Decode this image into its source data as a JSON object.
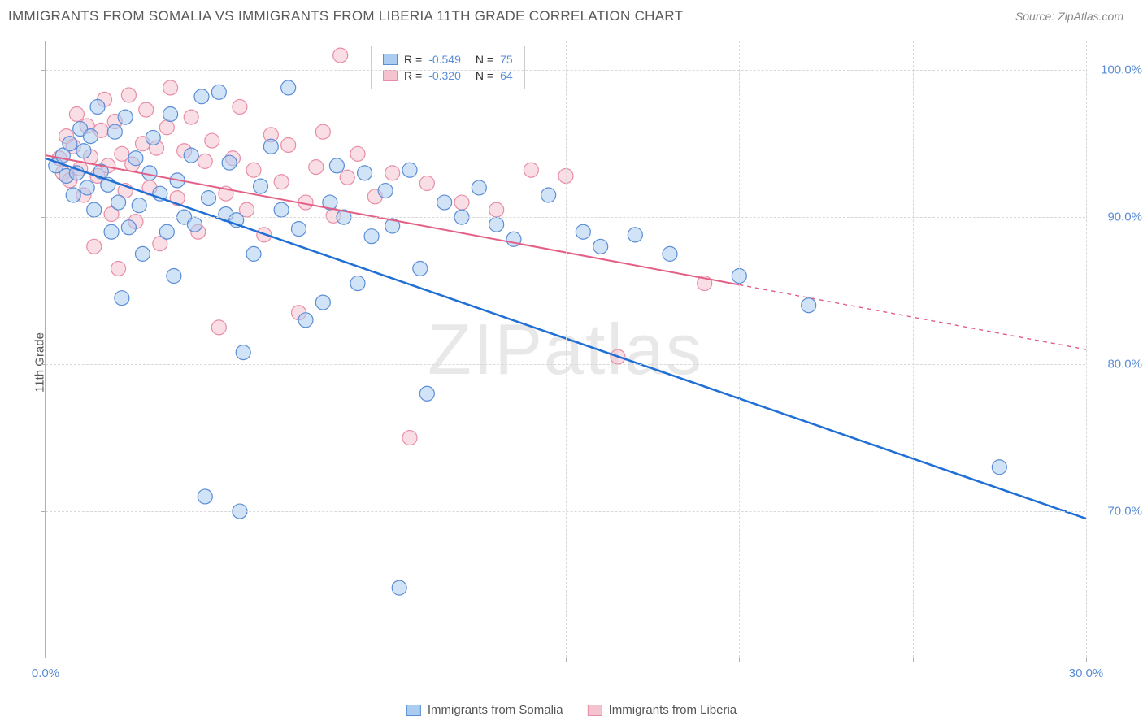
{
  "header": {
    "title": "IMMIGRANTS FROM SOMALIA VS IMMIGRANTS FROM LIBERIA 11TH GRADE CORRELATION CHART",
    "source_prefix": "Source: ",
    "source_name": "ZipAtlas.com"
  },
  "chart": {
    "type": "scatter",
    "ylabel": "11th Grade",
    "watermark": "ZIPatlas",
    "background_color": "#ffffff",
    "grid_color": "#d8d8d8",
    "axis_color": "#b0b0b0",
    "tick_label_color": "#5b8dd6",
    "xlim": [
      0,
      30
    ],
    "ylim": [
      60,
      102
    ],
    "y_ticks": [
      70,
      80,
      90,
      100
    ],
    "y_tick_labels": [
      "70.0%",
      "80.0%",
      "90.0%",
      "100.0%"
    ],
    "x_ticks_major": [
      0,
      5,
      10,
      15,
      20,
      25,
      30
    ],
    "x_tick_labels": {
      "0": "0.0%",
      "30": "30.0%"
    },
    "series": {
      "somalia": {
        "label": "Immigrants from Somalia",
        "color_fill": "#aaccf0",
        "color_stroke": "#5b8dd6",
        "marker_radius": 9,
        "fill_opacity": 0.55,
        "R": "-0.549",
        "N": "75",
        "trend": {
          "x1": 0,
          "y1": 94,
          "x2": 30,
          "y2": 69.5,
          "color": "#1f6fd4",
          "width": 2.5,
          "solid_until_x": 30
        },
        "points": [
          [
            0.3,
            93.5
          ],
          [
            0.5,
            94.2
          ],
          [
            0.6,
            92.8
          ],
          [
            0.7,
            95.0
          ],
          [
            0.8,
            91.5
          ],
          [
            0.9,
            93.0
          ],
          [
            1.0,
            96.0
          ],
          [
            1.1,
            94.5
          ],
          [
            1.2,
            92.0
          ],
          [
            1.3,
            95.5
          ],
          [
            1.4,
            90.5
          ],
          [
            1.5,
            97.5
          ],
          [
            1.6,
            93.1
          ],
          [
            1.8,
            92.2
          ],
          [
            1.9,
            89.0
          ],
          [
            2.0,
            95.8
          ],
          [
            2.1,
            91.0
          ],
          [
            2.2,
            84.5
          ],
          [
            2.3,
            96.8
          ],
          [
            2.4,
            89.3
          ],
          [
            2.6,
            94.0
          ],
          [
            2.7,
            90.8
          ],
          [
            2.8,
            87.5
          ],
          [
            3.0,
            93.0
          ],
          [
            3.1,
            95.4
          ],
          [
            3.3,
            91.6
          ],
          [
            3.5,
            89.0
          ],
          [
            3.6,
            97.0
          ],
          [
            3.7,
            86.0
          ],
          [
            3.8,
            92.5
          ],
          [
            4.0,
            90.0
          ],
          [
            4.2,
            94.2
          ],
          [
            4.3,
            89.5
          ],
          [
            4.5,
            98.2
          ],
          [
            4.6,
            71.0
          ],
          [
            4.7,
            91.3
          ],
          [
            5.0,
            98.5
          ],
          [
            5.2,
            90.2
          ],
          [
            5.3,
            93.7
          ],
          [
            5.5,
            89.8
          ],
          [
            5.6,
            70.0
          ],
          [
            5.7,
            80.8
          ],
          [
            6.0,
            87.5
          ],
          [
            6.2,
            92.1
          ],
          [
            6.5,
            94.8
          ],
          [
            6.8,
            90.5
          ],
          [
            7.0,
            98.8
          ],
          [
            7.3,
            89.2
          ],
          [
            7.5,
            83.0
          ],
          [
            8.0,
            84.2
          ],
          [
            8.2,
            91.0
          ],
          [
            8.4,
            93.5
          ],
          [
            8.6,
            90.0
          ],
          [
            9.0,
            85.5
          ],
          [
            9.2,
            93.0
          ],
          [
            9.4,
            88.7
          ],
          [
            9.8,
            91.8
          ],
          [
            10.0,
            89.4
          ],
          [
            10.2,
            64.8
          ],
          [
            10.5,
            93.2
          ],
          [
            10.8,
            86.5
          ],
          [
            11.0,
            78.0
          ],
          [
            11.5,
            91.0
          ],
          [
            12.0,
            90.0
          ],
          [
            12.5,
            92.0
          ],
          [
            13.0,
            89.5
          ],
          [
            13.5,
            88.5
          ],
          [
            14.5,
            91.5
          ],
          [
            15.5,
            89.0
          ],
          [
            16.0,
            88.0
          ],
          [
            17.0,
            88.8
          ],
          [
            18.0,
            87.5
          ],
          [
            20.0,
            86.0
          ],
          [
            22.0,
            84.0
          ],
          [
            27.5,
            73.0
          ]
        ]
      },
      "liberia": {
        "label": "Immigrants from Liberia",
        "color_fill": "#f5c2d0",
        "color_stroke": "#e88da5",
        "marker_radius": 9,
        "fill_opacity": 0.55,
        "R": "-0.320",
        "N": "64",
        "trend": {
          "x1": 0,
          "y1": 94.2,
          "x2": 30,
          "y2": 81,
          "color": "#e35d84",
          "width": 2,
          "solid_until_x": 20
        },
        "points": [
          [
            0.4,
            94.0
          ],
          [
            0.5,
            93.0
          ],
          [
            0.6,
            95.5
          ],
          [
            0.7,
            92.5
          ],
          [
            0.8,
            94.8
          ],
          [
            0.9,
            97.0
          ],
          [
            1.0,
            93.3
          ],
          [
            1.1,
            91.5
          ],
          [
            1.2,
            96.2
          ],
          [
            1.3,
            94.1
          ],
          [
            1.4,
            88.0
          ],
          [
            1.5,
            92.8
          ],
          [
            1.6,
            95.9
          ],
          [
            1.7,
            98.0
          ],
          [
            1.8,
            93.5
          ],
          [
            1.9,
            90.2
          ],
          [
            2.0,
            96.5
          ],
          [
            2.1,
            86.5
          ],
          [
            2.2,
            94.3
          ],
          [
            2.3,
            91.8
          ],
          [
            2.4,
            98.3
          ],
          [
            2.5,
            93.6
          ],
          [
            2.6,
            89.7
          ],
          [
            2.8,
            95.0
          ],
          [
            2.9,
            97.3
          ],
          [
            3.0,
            92.0
          ],
          [
            3.2,
            94.7
          ],
          [
            3.3,
            88.2
          ],
          [
            3.5,
            96.1
          ],
          [
            3.6,
            98.8
          ],
          [
            3.8,
            91.3
          ],
          [
            4.0,
            94.5
          ],
          [
            4.2,
            96.8
          ],
          [
            4.4,
            89.0
          ],
          [
            4.6,
            93.8
          ],
          [
            4.8,
            95.2
          ],
          [
            5.0,
            82.5
          ],
          [
            5.2,
            91.6
          ],
          [
            5.4,
            94.0
          ],
          [
            5.6,
            97.5
          ],
          [
            5.8,
            90.5
          ],
          [
            6.0,
            93.2
          ],
          [
            6.3,
            88.8
          ],
          [
            6.5,
            95.6
          ],
          [
            6.8,
            92.4
          ],
          [
            7.0,
            94.9
          ],
          [
            7.3,
            83.5
          ],
          [
            7.5,
            91.0
          ],
          [
            7.8,
            93.4
          ],
          [
            8.0,
            95.8
          ],
          [
            8.3,
            90.1
          ],
          [
            8.5,
            101.0
          ],
          [
            8.7,
            92.7
          ],
          [
            9.0,
            94.3
          ],
          [
            9.5,
            91.4
          ],
          [
            10.0,
            93.0
          ],
          [
            10.5,
            75.0
          ],
          [
            11.0,
            92.3
          ],
          [
            12.0,
            91.0
          ],
          [
            13.0,
            90.5
          ],
          [
            14.0,
            93.2
          ],
          [
            15.0,
            92.8
          ],
          [
            16.5,
            80.5
          ],
          [
            19.0,
            85.5
          ]
        ]
      }
    },
    "legend_top": {
      "R_label": "R =",
      "N_label": "N ="
    }
  }
}
